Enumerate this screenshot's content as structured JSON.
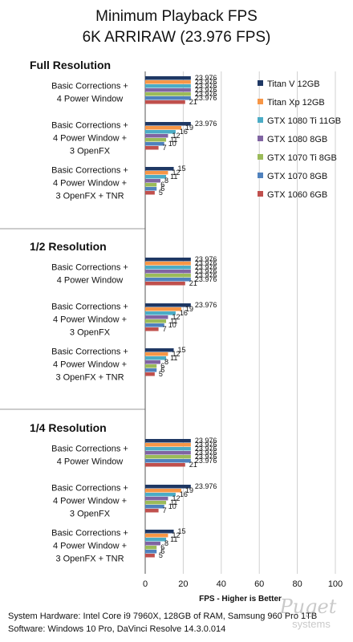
{
  "header": {
    "title": "Minimum Playback FPS",
    "subtitle": "6K ARRIRAW (23.976 FPS)"
  },
  "chart_data": {
    "type": "bar",
    "orientation": "horizontal",
    "title": "Minimum Playback FPS",
    "subtitle": "6K ARRIRAW (23.976 FPS)",
    "xlabel": "FPS - Higher is Better",
    "xlim": [
      0,
      100
    ],
    "x_ticks": [
      "0",
      "20",
      "40",
      "60",
      "80",
      "100"
    ],
    "grid": true,
    "legend_position": "right",
    "series": [
      {
        "name": "Titan V 12GB",
        "color": "#1f3864"
      },
      {
        "name": "Titan Xp 12GB",
        "color": "#f79646"
      },
      {
        "name": "GTX 1080 Ti 11GB",
        "color": "#4bacc6"
      },
      {
        "name": "GTX 1080 8GB",
        "color": "#8064a2"
      },
      {
        "name": "GTX 1070 Ti 8GB",
        "color": "#9bbb59"
      },
      {
        "name": "GTX 1070 8GB",
        "color": "#4f81bd"
      },
      {
        "name": "GTX 1060 6GB",
        "color": "#c0504d"
      }
    ],
    "sections": [
      {
        "name": "Full Resolution",
        "groups": [
          {
            "label": [
              "Basic Corrections +",
              "4 Power Window"
            ],
            "values": [
              23.976,
              23.976,
              23.976,
              23.976,
              23.976,
              23.976,
              21
            ],
            "labels": [
              "23.976",
              "23.976",
              "23.976",
              "23.976",
              "23.976",
              "23.976",
              "21"
            ]
          },
          {
            "label": [
              "Basic Corrections +",
              "4 Power Window +",
              "3 OpenFX"
            ],
            "values": [
              23.976,
              19,
              16,
              12,
              11,
              10,
              7
            ],
            "labels": [
              "23.976",
              "19",
              "16",
              "12",
              "11",
              "10",
              "7"
            ]
          },
          {
            "label": [
              "Basic Corrections +",
              "4 Power Window +",
              "3 OpenFX + TNR"
            ],
            "values": [
              15,
              12,
              11,
              8,
              6,
              6,
              5
            ],
            "labels": [
              "15",
              "12",
              "11",
              "8",
              "6",
              "6",
              "5"
            ]
          }
        ]
      },
      {
        "name": "1/2 Resolution",
        "groups": [
          {
            "label": [
              "Basic Corrections +",
              "4 Power Window"
            ],
            "values": [
              23.976,
              23.976,
              23.976,
              23.976,
              23.976,
              23.976,
              21
            ],
            "labels": [
              "23.976",
              "23.976",
              "23.976",
              "23.976",
              "23.976",
              "23.976",
              "21"
            ]
          },
          {
            "label": [
              "Basic Corrections +",
              "4 Power Window +",
              "3 OpenFX"
            ],
            "values": [
              23.976,
              19,
              16,
              12,
              11,
              10,
              7
            ],
            "labels": [
              "23.976",
              "19",
              "16",
              "12",
              "11",
              "10",
              "7"
            ]
          },
          {
            "label": [
              "Basic Corrections +",
              "4 Power Window +",
              "3 OpenFX + TNR"
            ],
            "values": [
              15,
              12,
              11,
              8,
              6,
              6,
              5
            ],
            "labels": [
              "15",
              "12",
              "11",
              "8",
              "6",
              "6",
              "5"
            ]
          }
        ]
      },
      {
        "name": "1/4 Resolution",
        "groups": [
          {
            "label": [
              "Basic Corrections +",
              "4 Power Window"
            ],
            "values": [
              23.976,
              23.976,
              23.976,
              23.976,
              23.976,
              23.976,
              21
            ],
            "labels": [
              "23.976",
              "23.976",
              "23.976",
              "23.976",
              "23.976",
              "23.976",
              "21"
            ]
          },
          {
            "label": [
              "Basic Corrections +",
              "4 Power Window +",
              "3 OpenFX"
            ],
            "values": [
              23.976,
              19,
              16,
              12,
              11,
              10,
              7
            ],
            "labels": [
              "23.976",
              "19",
              "16",
              "12",
              "11",
              "10",
              "7"
            ]
          },
          {
            "label": [
              "Basic Corrections +",
              "4 Power Window +",
              "3 OpenFX + TNR"
            ],
            "values": [
              15,
              12,
              11,
              8,
              6,
              6,
              5
            ],
            "labels": [
              "15",
              "12",
              "11",
              "8",
              "6",
              "6",
              "5"
            ]
          }
        ]
      }
    ]
  },
  "footer": {
    "hardware": "System Hardware: Intel Core i9 7960X,  128GB of RAM, Samsung 960 Pro 1TB",
    "software": "Software: Windows 10 Pro, DaVinci Resolve 14.3.0.014"
  },
  "watermark": {
    "brand": "Puget",
    "sub": "systems"
  }
}
